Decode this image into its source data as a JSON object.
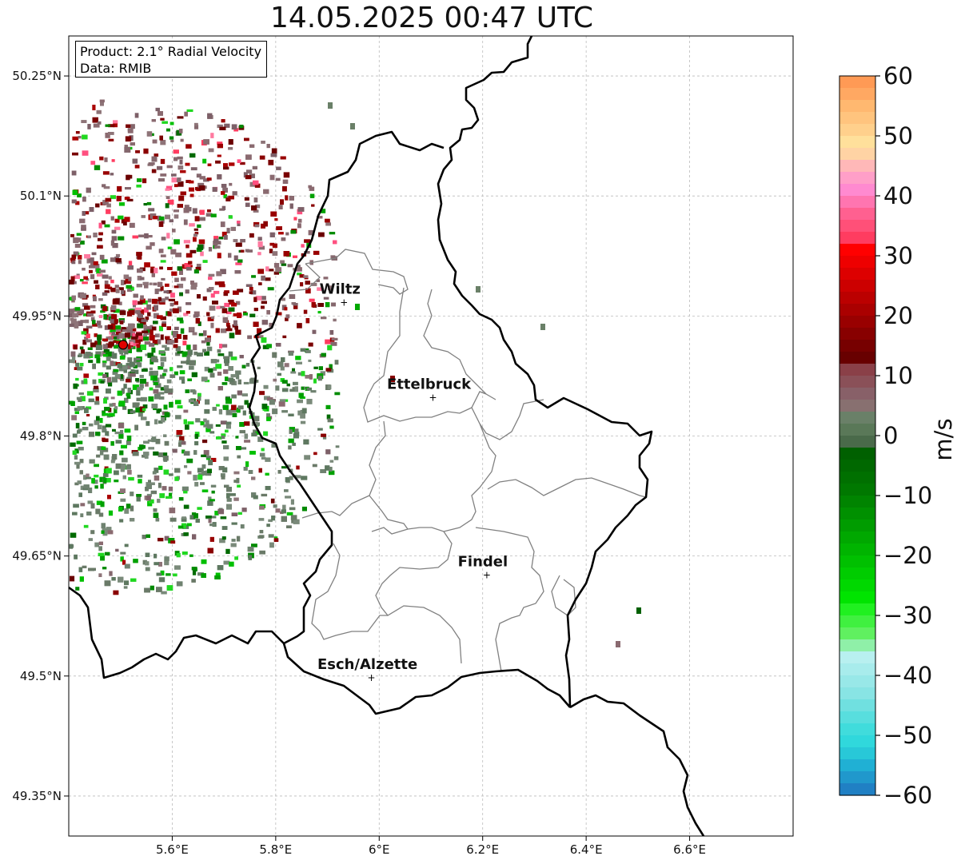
{
  "title": "14.05.2025 00:47 UTC",
  "info": {
    "product": "Product: 2.1° Radial Velocity",
    "data_source": "Data: RMIB"
  },
  "map": {
    "extent": {
      "lon": [
        5.4,
        6.8
      ],
      "lat": [
        49.3,
        50.3
      ]
    },
    "lon_ticks": [
      "5.6°E",
      "5.8°E",
      "6°E",
      "6.2°E",
      "6.4°E",
      "6.6°E"
    ],
    "lat_ticks": [
      "50.25°N",
      "50.1°N",
      "49.95°N",
      "49.8°N",
      "49.65°N",
      "49.5°N",
      "49.35°N"
    ],
    "radar_site": {
      "lon": 5.505,
      "lat": 49.914
    },
    "cities": [
      {
        "name": "Wiltz",
        "lon": 5.932,
        "lat": 49.967
      },
      {
        "name": "Ettelbruck",
        "lon": 6.104,
        "lat": 49.848
      },
      {
        "name": "Findel",
        "lon": 6.208,
        "lat": 49.626
      },
      {
        "name": "Esch/Alzette",
        "lon": 5.985,
        "lat": 49.498
      }
    ],
    "colors": {
      "border": "#000000",
      "admin": "#808080",
      "grid": "#bbbbbb",
      "radar_site": "#e00000"
    }
  },
  "colorbar": {
    "label": "m/s",
    "min": -60,
    "max": 60,
    "ticks": [
      "60",
      "50",
      "40",
      "30",
      "20",
      "10",
      "0",
      "−10",
      "−20",
      "−30",
      "−40",
      "−50",
      "−60"
    ],
    "colors_top_to_bottom": [
      "#ff9a55",
      "#ffa862",
      "#ffb870",
      "#ffc47e",
      "#ffd08c",
      "#ffe09b",
      "#ffd3a4",
      "#ffb8b8",
      "#ff9fc8",
      "#ff8ad0",
      "#ff75b0",
      "#ff6090",
      "#ff5078",
      "#ff3c60",
      "#ff0000",
      "#ee0000",
      "#dd0000",
      "#cc0000",
      "#bb0000",
      "#aa0000",
      "#990000",
      "#880000",
      "#770000",
      "#680000",
      "#8a4048",
      "#8a5058",
      "#886068",
      "#887070",
      "#6a8068",
      "#5a7858",
      "#4a6a4a",
      "#006000",
      "#006800",
      "#007000",
      "#007800",
      "#008400",
      "#009000",
      "#009c00",
      "#00a800",
      "#00b400",
      "#00c000",
      "#00cc00",
      "#00d800",
      "#00e400",
      "#20f020",
      "#40f040",
      "#60f060",
      "#8ff0a8",
      "#b8f0f0",
      "#a8ecec",
      "#98e8e8",
      "#88e4e4",
      "#70e0e0",
      "#58dede",
      "#40dcdc",
      "#30d8dc",
      "#28c8d8",
      "#20b0d4",
      "#2098cc",
      "#2080c4"
    ]
  }
}
